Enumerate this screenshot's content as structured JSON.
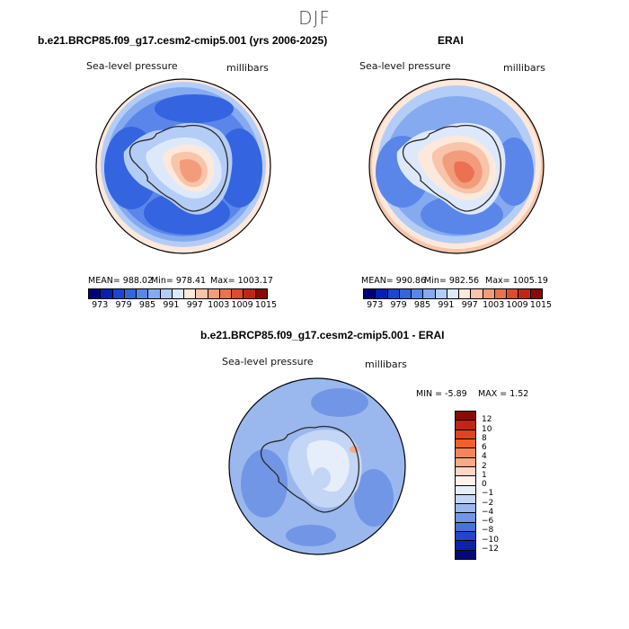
{
  "chart_data": [
    {
      "type": "heatmap",
      "title": "b.e21.BRCP85.f09_g17.cesm2-cmip5.001 (yrs 2006-2025)",
      "subtitle_left": "Sea-level pressure",
      "subtitle_right": "millibars",
      "stats": {
        "mean": "MEAN= 988.02",
        "min": "Min= 978.41",
        "max": "Max= 1003.17"
      },
      "colorbar_ticks": [
        "973",
        "979",
        "985",
        "991",
        "997",
        "1003",
        "1009",
        "1015"
      ]
    },
    {
      "type": "heatmap",
      "title": "ERAI",
      "subtitle_left": "Sea-level pressure",
      "subtitle_right": "millibars",
      "stats": {
        "mean": "MEAN= 990.86",
        "min": "Min= 982.56",
        "max": "Max= 1005.19"
      },
      "colorbar_ticks": [
        "973",
        "979",
        "985",
        "991",
        "997",
        "1003",
        "1009",
        "1015"
      ]
    },
    {
      "type": "heatmap",
      "title": "b.e21.BRCP85.f09_g17.cesm2-cmip5.001 - ERAI",
      "subtitle_left": "Sea-level pressure",
      "subtitle_right": "millibars",
      "stats": {
        "min": "MIN = -5.89",
        "max": "MAX = 1.52"
      },
      "colorbar_ticks": [
        "12",
        "10",
        "8",
        "6",
        "4",
        "2",
        "1",
        "0",
        "−1",
        "−2",
        "−4",
        "−6",
        "−8",
        "−10",
        "−12"
      ]
    }
  ],
  "page": {
    "title": "DJF"
  },
  "colors": {
    "abs_scale": [
      "#00007a",
      "#0520b5",
      "#1a45d6",
      "#3464e0",
      "#5a86ea",
      "#86aaf0",
      "#b4cdf6",
      "#dde9fb",
      "#fde8dc",
      "#f8c4aa",
      "#f39c7c",
      "#ec7052",
      "#e04a2e",
      "#c42415",
      "#8a0a05"
    ],
    "diff_scale": [
      "#8a0a05",
      "#c42415",
      "#e2431f",
      "#f26028",
      "#f4855a",
      "#f7a988",
      "#fcd6c6",
      "#fff2ea",
      "#e6eefb",
      "#c4d6f6",
      "#9ab8ee",
      "#7296e6",
      "#4a70dc",
      "#2046cc",
      "#0a24a6",
      "#000a7a"
    ],
    "land": "#2a2a2a"
  }
}
